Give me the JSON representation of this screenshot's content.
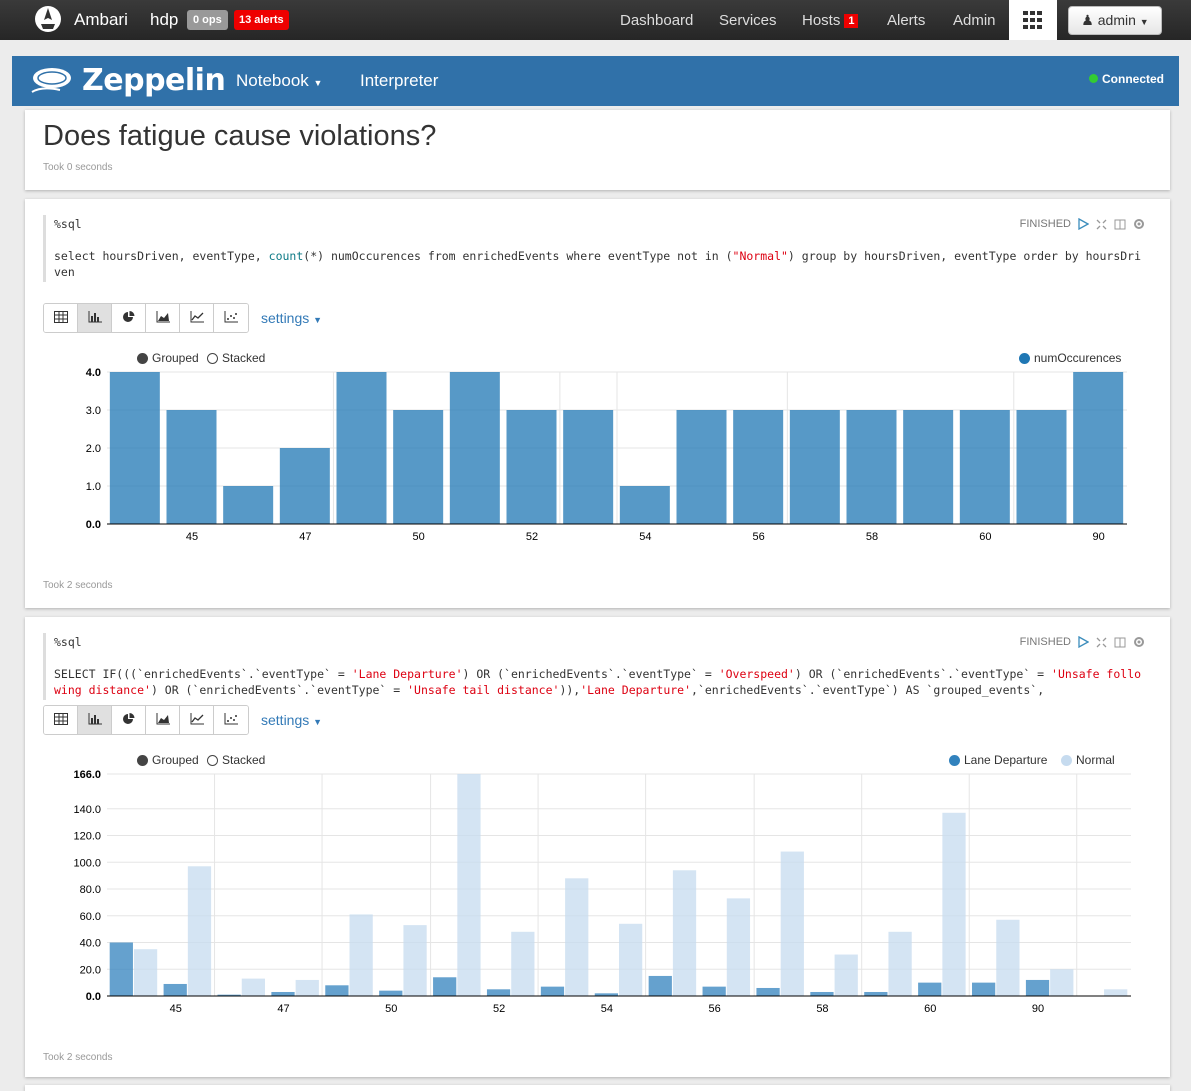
{
  "ambari": {
    "brand": "Ambari",
    "cluster": "hdp",
    "ops": "0 ops",
    "alerts": "13 alerts",
    "nav": [
      {
        "label": "Dashboard"
      },
      {
        "label": "Services"
      },
      {
        "label": "Hosts",
        "badge": "1"
      },
      {
        "label": "Alerts"
      },
      {
        "label": "Admin"
      }
    ],
    "user": "admin"
  },
  "zeppelin": {
    "brand": "Zeppelin",
    "notebook": "Notebook",
    "interpreter": "Interpreter",
    "status": "Connected",
    "status_color": "#33cc33"
  },
  "title_para": {
    "title": "Does fatigue cause violations?",
    "took": "Took 0 seconds"
  },
  "para1": {
    "lang": "%sql",
    "status": "FINISHED",
    "code_parts": [
      "select hoursDriven, eventType, ",
      "count",
      "(*) numOccurences from enrichedEvents where eventType not in (",
      "\"Normal\"",
      ") group by hoursDriven, eventType order by hoursDriven"
    ],
    "settings": "settings",
    "legend_grouped": "Grouped",
    "legend_stacked": "Stacked",
    "took": "Took 2 seconds"
  },
  "para2": {
    "lang": "%sql",
    "status": "FINISHED",
    "code_parts": [
      "SELECT IF(((`enrichedEvents`.`eventType` = ",
      "'Lane Departure'",
      ") OR (`enrichedEvents`.`eventType` = ",
      "'Overspeed'",
      ") OR (`enrichedEvents`.`eventType` = ",
      "'Unsafe following distance'",
      ") OR (`enrichedEvents`.`eventType` = ",
      "'Unsafe tail distance'",
      ")),",
      "'Lane Departure'",
      ",`enrichedEvents`.`eventType`) AS `grouped_events`,"
    ],
    "settings": "settings",
    "legend_grouped": "Grouped",
    "legend_stacked": "Stacked",
    "took": "Took 2 seconds"
  },
  "chart_data": [
    {
      "type": "bar",
      "title": "",
      "categories": [
        "44",
        "45",
        "46",
        "47",
        "49",
        "50",
        "51",
        "52",
        "53",
        "54",
        "55",
        "56",
        "57",
        "58",
        "59",
        "60",
        "89",
        "90"
      ],
      "tick_labels": [
        "45",
        "47",
        "50",
        "52",
        "54",
        "56",
        "58",
        "60",
        "90"
      ],
      "series": [
        {
          "name": "numOccurences",
          "color": "#1f77b4",
          "values": [
            4,
            3,
            1,
            2,
            4,
            3,
            4,
            3,
            3,
            1,
            3,
            3,
            3,
            3,
            3,
            3,
            3,
            4
          ]
        }
      ],
      "y_ticks": [
        "0.0",
        "1.0",
        "2.0",
        "3.0",
        "4.0"
      ],
      "ylim": [
        0,
        4
      ],
      "xlabel": "",
      "ylabel": "",
      "legend": "top-right"
    },
    {
      "type": "bar",
      "title": "",
      "categories": [
        "44",
        "45",
        "46",
        "47",
        "48",
        "50",
        "51",
        "52",
        "53",
        "54",
        "55",
        "56",
        "57",
        "58",
        "59",
        "60",
        "89",
        "90",
        "91"
      ],
      "tick_labels": [
        "45",
        "47",
        "50",
        "52",
        "54",
        "56",
        "58",
        "60",
        "90"
      ],
      "series": [
        {
          "name": "Lane Departure",
          "color": "#3182bd",
          "values": [
            40,
            9,
            1,
            3,
            8,
            4,
            14,
            5,
            7,
            2,
            15,
            7,
            6,
            3,
            3,
            10,
            10,
            12,
            0
          ]
        },
        {
          "name": "Normal",
          "color": "#c6dbef",
          "values": [
            35,
            97,
            13,
            12,
            61,
            53,
            166,
            48,
            88,
            54,
            94,
            73,
            108,
            31,
            48,
            137,
            57,
            20,
            5
          ]
        }
      ],
      "y_ticks": [
        "0.0",
        "20.0",
        "40.0",
        "60.0",
        "80.0",
        "100.0",
        "120.0",
        "140.0",
        "166.0"
      ],
      "ylim": [
        0,
        166
      ],
      "xlabel": "",
      "ylabel": "",
      "legend": "top-right"
    }
  ]
}
